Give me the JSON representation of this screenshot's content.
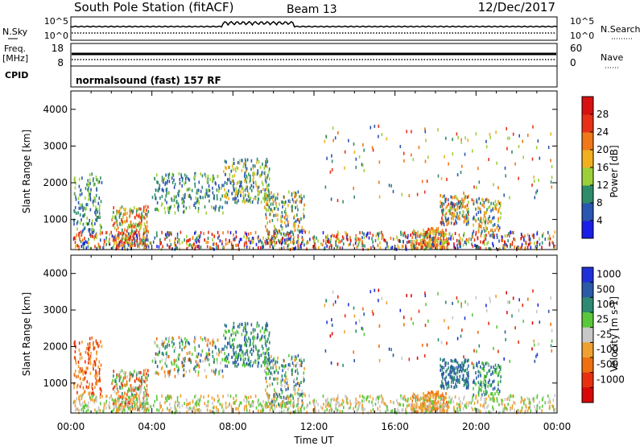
{
  "header": {
    "title": "South Pole Station (fitACF)",
    "beam": "Beam 13",
    "date": "12/Dec/2017"
  },
  "strips": {
    "nsky_label": "N.Sky",
    "nsky_ticks": [
      "10^5",
      "10^0"
    ],
    "nsearch_label": "N.Search",
    "nsearch_ticks": [
      "10^5",
      "10^0"
    ],
    "freq_label": "Freq.",
    "freq_unit": "[MHz]",
    "freq_ticks": [
      "18",
      "8"
    ],
    "nave_label": "Nave",
    "nave_ticks": [
      "60",
      "0"
    ],
    "cpid_label": "CPID",
    "cpid_text": "normalsound (fast) 157 RF"
  },
  "chart_data": [
    {
      "type": "heatmap",
      "name": "power",
      "ylabel": "Slant Range [km]",
      "ylim": [
        180,
        4500
      ],
      "yticks": [
        "1000",
        "2000",
        "3000",
        "4000"
      ],
      "ytick_values": [
        1000,
        2000,
        3000,
        4000
      ],
      "colorbar_label": "Power [dB]",
      "colorbar_ticks": [
        "4",
        "8",
        "12",
        "16",
        "20",
        "24",
        "28"
      ],
      "colorbar_tick_values": [
        4,
        8,
        12,
        16,
        20,
        24,
        28
      ],
      "colorbar_range": [
        0,
        32
      ],
      "colorbar_colors": [
        "#1a1ee6",
        "#2a55b0",
        "#2e8c6a",
        "#9cd03a",
        "#f0b020",
        "#f07818",
        "#e83018",
        "#d81010"
      ]
    },
    {
      "type": "heatmap",
      "name": "velocity",
      "ylabel": "Slant Range [km]",
      "ylim": [
        180,
        4500
      ],
      "yticks": [
        "1000",
        "2000",
        "3000",
        "4000"
      ],
      "ytick_values": [
        1000,
        2000,
        3000,
        4000
      ],
      "colorbar_label": "Velocity [m s-1]",
      "colorbar_ticks": [
        "1000",
        "500",
        "100",
        "25",
        "-25",
        "-100",
        "-500",
        "-1000"
      ],
      "colorbar_colors": [
        "#2030d8",
        "#2a5aa8",
        "#2e8a72",
        "#5ac83a",
        "#c8c8c8",
        "#f0a030",
        "#f07010",
        "#e83010",
        "#d80808"
      ]
    }
  ],
  "xaxis": {
    "label": "Time UT",
    "ticks": [
      "00:00",
      "04:00",
      "08:00",
      "12:00",
      "16:00",
      "20:00",
      "00:00"
    ],
    "tick_hours": [
      0,
      4,
      8,
      12,
      16,
      20,
      24
    ],
    "xlim": [
      0,
      24
    ]
  },
  "colors": {
    "power": [
      "#1a1ee6",
      "#2a55b0",
      "#2e8c6a",
      "#9cd03a",
      "#f0b020",
      "#f07818",
      "#e83018",
      "#d81010"
    ],
    "velocity": [
      "#2030d8",
      "#2a5aa8",
      "#2e8a72",
      "#5ac83a",
      "#c8c8c8",
      "#f0a030",
      "#f07010",
      "#e83010",
      "#d80808"
    ]
  }
}
